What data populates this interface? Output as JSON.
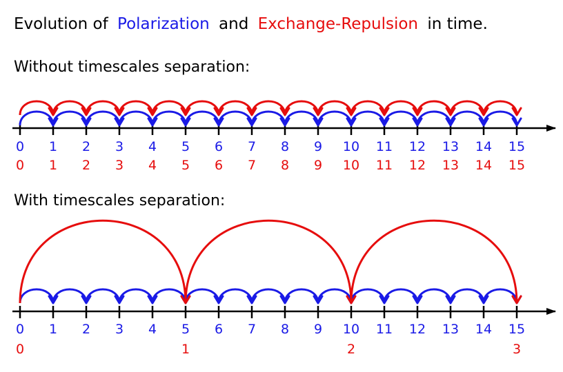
{
  "title": {
    "prefix": "Evolution of",
    "polarization": "Polarization",
    "and": "and",
    "exchange_repulsion": "Exchange-Repulsion",
    "suffix": "in time."
  },
  "colors": {
    "polarization": "#1a1ae6",
    "exchange_repulsion": "#e60d0d",
    "axis": "#000000"
  },
  "panels": [
    {
      "heading": "Without timescales separation:",
      "steps": [
        "0",
        "1",
        "2",
        "3",
        "4",
        "5",
        "6",
        "7",
        "8",
        "9",
        "10",
        "11",
        "12",
        "13",
        "14",
        "15"
      ],
      "blue_labels": [
        "0",
        "1",
        "2",
        "3",
        "4",
        "5",
        "6",
        "7",
        "8",
        "9",
        "10",
        "11",
        "12",
        "13",
        "14",
        "15"
      ],
      "red_labels": [
        "0",
        "1",
        "2",
        "3",
        "4",
        "5",
        "6",
        "7",
        "8",
        "9",
        "10",
        "11",
        "12",
        "13",
        "14",
        "15"
      ],
      "red_jump_every": 1
    },
    {
      "heading": "With timescales separation:",
      "steps": [
        "0",
        "1",
        "2",
        "3",
        "4",
        "5",
        "6",
        "7",
        "8",
        "9",
        "10",
        "11",
        "12",
        "13",
        "14",
        "15"
      ],
      "blue_labels": [
        "0",
        "1",
        "2",
        "3",
        "4",
        "5",
        "6",
        "7",
        "8",
        "9",
        "10",
        "11",
        "12",
        "13",
        "14",
        "15"
      ],
      "red_labels": [
        "0",
        "",
        "",
        "",
        "",
        "1",
        "",
        "",
        "",
        "",
        "2",
        "",
        "",
        "",
        "",
        "3"
      ],
      "red_jump_every": 5
    }
  ]
}
